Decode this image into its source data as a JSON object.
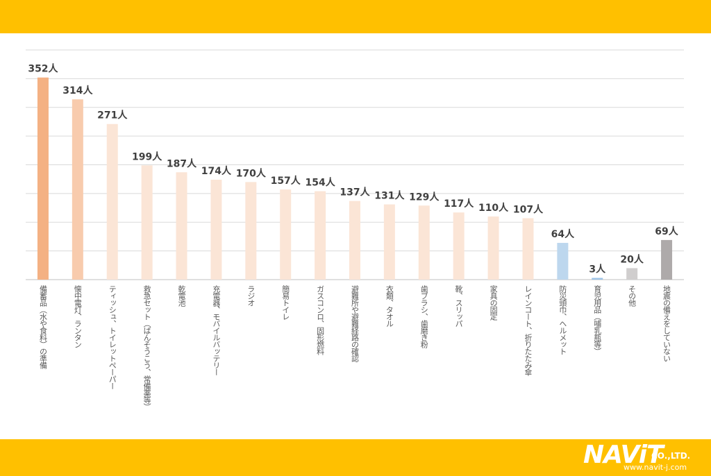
{
  "colors": {
    "band": "#FFC000",
    "grid": "#D9D9D9",
    "axis": "#BFBFBF",
    "value_text": "#404040",
    "label_text": "#595959"
  },
  "chart_data": {
    "type": "bar",
    "orientation": "vertical",
    "ylim": [
      0,
      400
    ],
    "grid": true,
    "gridlines": [
      0,
      50,
      100,
      150,
      200,
      250,
      300,
      350,
      400
    ],
    "bars": [
      {
        "category": "備蓄品（水や食料）の準備",
        "value": 352,
        "label": "352人",
        "color": "#F4B183"
      },
      {
        "category": "懐中電灯、ランタン",
        "value": 314,
        "label": "314人",
        "color": "#F8CBAD"
      },
      {
        "category": "ティッシュ、トイレットペーパー",
        "value": 271,
        "label": "271人",
        "color": "#FBE5D6"
      },
      {
        "category": "救急セット（ばんそうこう、常備薬等）",
        "value": 199,
        "label": "199人",
        "color": "#FBE5D6"
      },
      {
        "category": "乾電池",
        "value": 187,
        "label": "187人",
        "color": "#FBE5D6"
      },
      {
        "category": "充電器、モバイルバッテリー",
        "value": 174,
        "label": "174人",
        "color": "#FBE5D6"
      },
      {
        "category": "ラジオ",
        "value": 170,
        "label": "170人",
        "color": "#FBE5D6"
      },
      {
        "category": "簡易トイレ",
        "value": 157,
        "label": "157人",
        "color": "#FBE5D6"
      },
      {
        "category": "ガスコンロ、固形燃料",
        "value": 154,
        "label": "154人",
        "color": "#FBE5D6"
      },
      {
        "category": "避難所や避難経路の確認",
        "value": 137,
        "label": "137人",
        "color": "#FBE5D6"
      },
      {
        "category": "衣類、タオル",
        "value": 131,
        "label": "131人",
        "color": "#FBE5D6"
      },
      {
        "category": "歯ブラシ、歯磨き粉",
        "value": 129,
        "label": "129人",
        "color": "#FBE5D6"
      },
      {
        "category": "靴、スリッパ",
        "value": 117,
        "label": "117人",
        "color": "#FBE5D6"
      },
      {
        "category": "家具の固定",
        "value": 110,
        "label": "110人",
        "color": "#FBE5D6"
      },
      {
        "category": "レインコート、折りたたみ傘",
        "value": 107,
        "label": "107人",
        "color": "#FBE5D6"
      },
      {
        "category": "防災頭巾、ヘルメット",
        "value": 64,
        "label": "64人",
        "color": "#BDD7EE"
      },
      {
        "category": "育児用品（哺乳瓶等）",
        "value": 3,
        "label": "3人",
        "color": "#9DC3E6"
      },
      {
        "category": "その他",
        "value": 20,
        "label": "20人",
        "color": "#D0CECE"
      },
      {
        "category": "地震の備えをしていない",
        "value": 69,
        "label": "69人",
        "color": "#AEAAAA"
      }
    ]
  },
  "branding": {
    "name": "NAViT",
    "suffix": "CO.,LTD.",
    "url": "www.navit-j.com"
  }
}
